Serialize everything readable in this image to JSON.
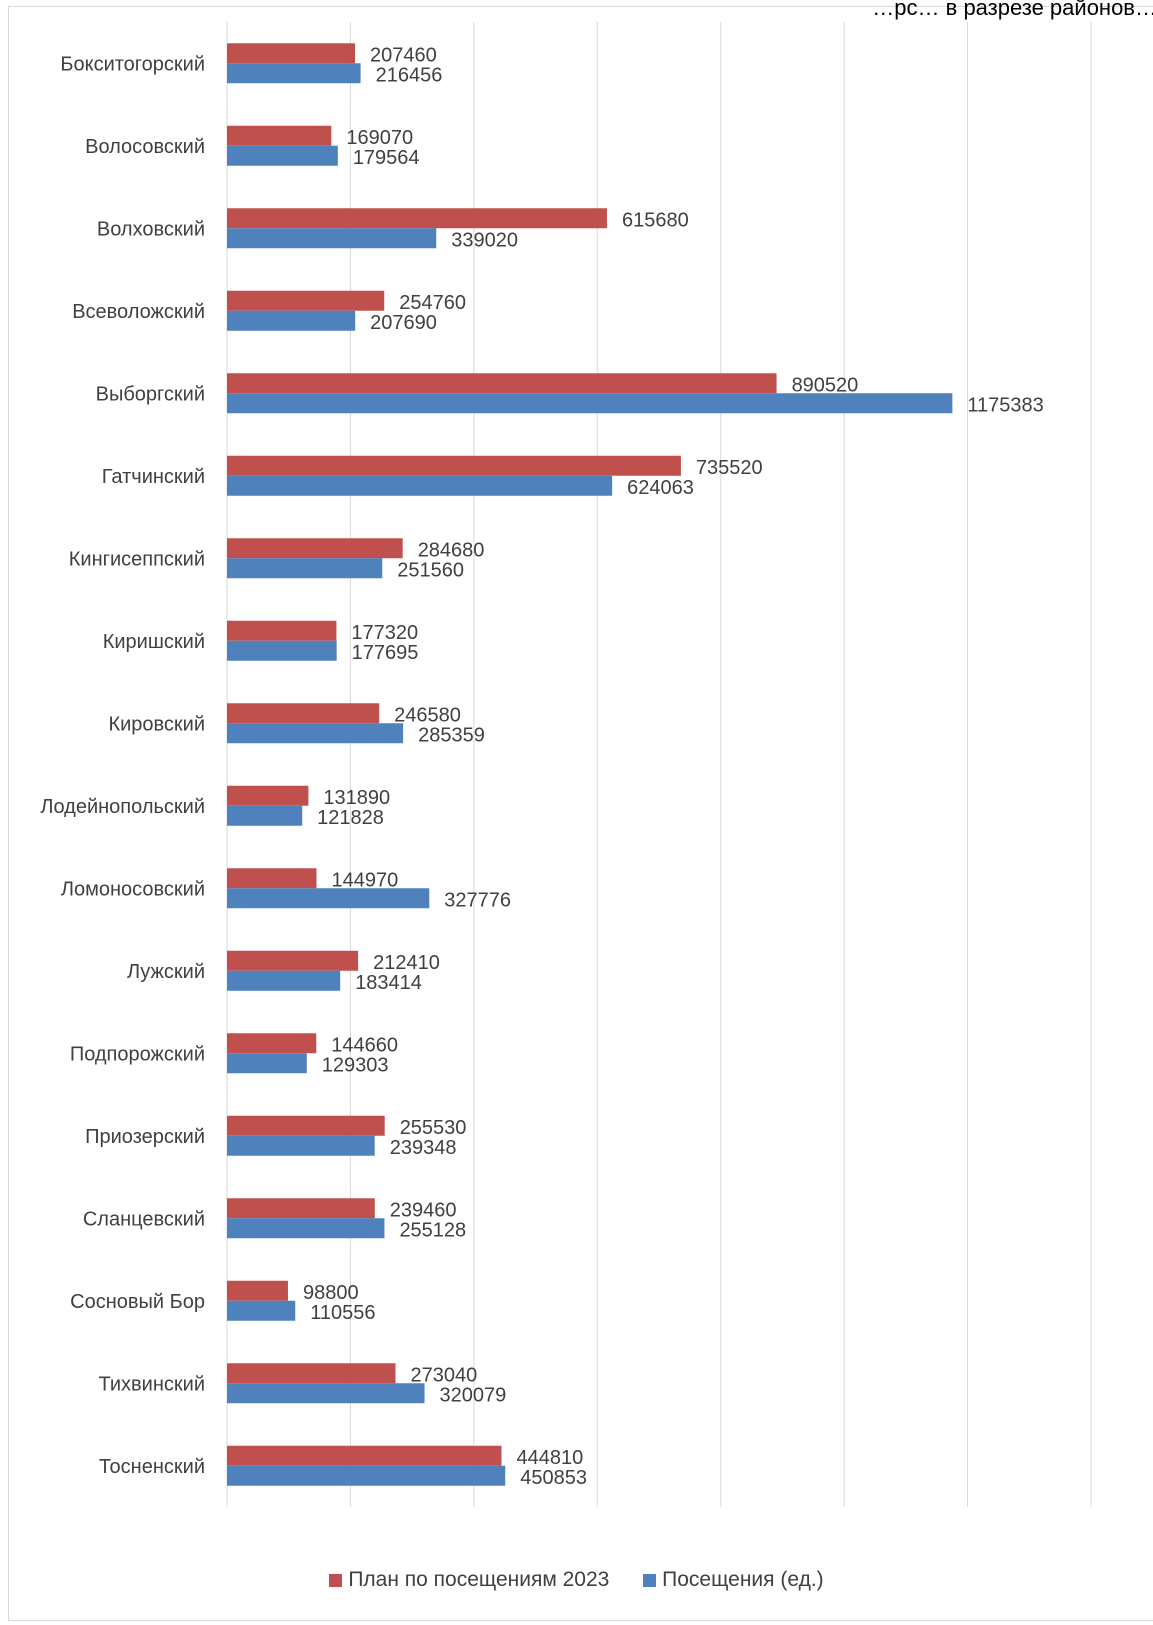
{
  "chart_data": {
    "type": "bar",
    "orientation": "horizontal",
    "top_cropped_text": "…рс… в разрезе районов…",
    "categories": [
      "Бокситогорский",
      "Волосовский",
      "Волховский",
      "Всеволожский",
      "Выборгский",
      "Гатчинский",
      "Кингисеппский",
      "Киришский",
      "Кировский",
      "Лодейнопольский",
      "Ломоносовский",
      "Лужский",
      "Подпорожский",
      "Приозерский",
      "Сланцевский",
      "Сосновый Бор",
      "Тихвинский",
      "Тосненский"
    ],
    "series": [
      {
        "name": "План по посещениям 2023",
        "color": "#c0504d",
        "values": [
          207460,
          169070,
          615680,
          254760,
          890520,
          735520,
          284680,
          177320,
          246580,
          131890,
          144970,
          212410,
          144660,
          255530,
          239460,
          98800,
          273040,
          444810
        ],
        "labels": [
          "207460",
          "169070",
          "615680",
          "254760",
          "890520",
          "735520",
          "284680",
          "177320",
          "246580",
          "131890",
          "144970",
          "212410",
          "144660",
          "255530",
          "239460",
          "98800",
          "273040",
          "444810"
        ]
      },
      {
        "name": "Посещения (ед.)",
        "color": "#4f81bd",
        "values": [
          216456,
          179564,
          339020,
          207690,
          1175383,
          624063,
          251560,
          177695,
          285359,
          121828,
          327776,
          183414,
          129303,
          239348,
          255128,
          110556,
          320079,
          450853
        ],
        "labels": [
          "216456",
          "179564",
          "339020",
          "207690",
          "1175383",
          "624063",
          "251560",
          "177695",
          "285359",
          "121828",
          "327776",
          "183414",
          "129303",
          "239348",
          "255128",
          "110556",
          "320079",
          "450853"
        ]
      }
    ],
    "xlim": [
      0,
      1400000
    ],
    "grid": true,
    "legend_position": "bottom"
  }
}
